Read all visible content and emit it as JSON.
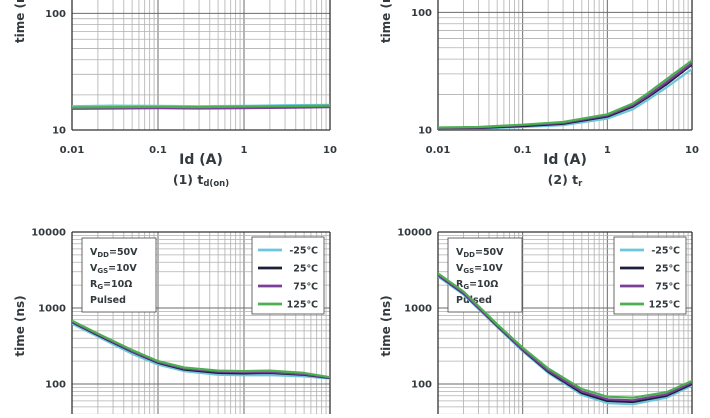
{
  "chart_data": [
    {
      "type": "line",
      "xscale": "log",
      "yscale": "log",
      "xlabel": "Id (A)",
      "ylabel": "time (ns)",
      "caption_main": "(1) t",
      "caption_sub": "d(on)",
      "xlim": [
        0.01,
        10
      ],
      "ylim": [
        10,
        10000
      ],
      "x_ticks": [
        "0.01",
        "0.1",
        "1",
        "10"
      ],
      "y_ticks": [
        "10",
        "100"
      ],
      "grid": true,
      "conditions": [],
      "series": [
        {
          "name": "-25℃",
          "color": "#6ec6dc",
          "x": [
            0.01,
            0.03,
            0.1,
            0.3,
            1,
            3,
            10
          ],
          "y": [
            16.0,
            16.2,
            16.1,
            16.0,
            16.1,
            16.3,
            16.4
          ]
        },
        {
          "name": "25℃",
          "color": "#1a1f3a",
          "x": [
            0.01,
            0.03,
            0.1,
            0.3,
            1,
            3,
            10
          ],
          "y": [
            15.4,
            15.5,
            15.6,
            15.5,
            15.6,
            15.7,
            15.9
          ]
        },
        {
          "name": "75℃",
          "color": "#7b3f98",
          "x": [
            0.01,
            0.03,
            0.1,
            0.3,
            1,
            3,
            10
          ],
          "y": [
            15.2,
            15.3,
            15.4,
            15.3,
            15.4,
            15.5,
            15.7
          ]
        },
        {
          "name": "125℃",
          "color": "#4caf50",
          "x": [
            0.01,
            0.03,
            0.1,
            0.3,
            1,
            3,
            10
          ],
          "y": [
            15.6,
            15.7,
            15.8,
            15.7,
            15.9,
            16.0,
            16.2
          ]
        }
      ]
    },
    {
      "type": "line",
      "xscale": "log",
      "yscale": "log",
      "xlabel": "Id (A)",
      "ylabel": "time (ns)",
      "caption_main": "(2) t",
      "caption_sub": "r",
      "xlim": [
        0.01,
        10
      ],
      "ylim": [
        10,
        10000
      ],
      "x_ticks": [
        "0.01",
        "0.1",
        "1",
        "10"
      ],
      "y_ticks": [
        "10",
        "100"
      ],
      "grid": true,
      "conditions": [],
      "series": [
        {
          "name": "-25℃",
          "color": "#6ec6dc",
          "x": [
            0.01,
            0.03,
            0.1,
            0.3,
            1,
            2,
            3,
            5,
            10
          ],
          "y": [
            10.2,
            10.3,
            10.6,
            11.0,
            12.5,
            15.0,
            18.0,
            23.0,
            33.0
          ]
        },
        {
          "name": "25℃",
          "color": "#1a1f3a",
          "x": [
            0.01,
            0.03,
            0.1,
            0.3,
            1,
            2,
            3,
            5,
            10
          ],
          "y": [
            10.3,
            10.4,
            10.8,
            11.3,
            13.0,
            15.8,
            19.0,
            24.5,
            36.0
          ]
        },
        {
          "name": "75℃",
          "color": "#7b3f98",
          "x": [
            0.01,
            0.03,
            0.1,
            0.3,
            1,
            2,
            3,
            5,
            10
          ],
          "y": [
            10.4,
            10.5,
            11.0,
            11.5,
            13.3,
            16.2,
            19.5,
            25.5,
            37.0
          ]
        },
        {
          "name": "125℃",
          "color": "#4caf50",
          "x": [
            0.01,
            0.03,
            0.1,
            0.3,
            1,
            2,
            3,
            5,
            10
          ],
          "y": [
            10.5,
            10.6,
            11.1,
            11.7,
            13.6,
            16.8,
            20.5,
            27.0,
            39.0
          ]
        }
      ]
    },
    {
      "type": "line",
      "xscale": "log",
      "yscale": "log",
      "xlabel": "",
      "ylabel": "time (ns)",
      "xlim": [
        0.01,
        10
      ],
      "ylim": [
        10,
        10000
      ],
      "y_ticks": [
        "100",
        "1000",
        "10000"
      ],
      "grid": true,
      "legend_position": "top-right",
      "conditions": [
        {
          "main": "V",
          "sub": "DD",
          "rest": "=50V"
        },
        {
          "main": "V",
          "sub": "GS",
          "rest": "=10V"
        },
        {
          "main": "R",
          "sub": "G",
          "rest": "=10Ω"
        },
        {
          "main": "Pulsed",
          "sub": "",
          "rest": ""
        }
      ],
      "series": [
        {
          "name": "-25℃",
          "color": "#6ec6dc",
          "x": [
            0.01,
            0.02,
            0.05,
            0.1,
            0.2,
            0.5,
            1,
            2,
            5,
            10
          ],
          "y": [
            620,
            420,
            250,
            180,
            148,
            132,
            130,
            131,
            126,
            118
          ]
        },
        {
          "name": "25℃",
          "color": "#1a1f3a",
          "x": [
            0.01,
            0.02,
            0.05,
            0.1,
            0.2,
            0.5,
            1,
            2,
            5,
            10
          ],
          "y": [
            650,
            440,
            265,
            190,
            155,
            140,
            138,
            140,
            132,
            120
          ]
        },
        {
          "name": "75℃",
          "color": "#7b3f98",
          "x": [
            0.01,
            0.02,
            0.05,
            0.1,
            0.2,
            0.5,
            1,
            2,
            5,
            10
          ],
          "y": [
            660,
            450,
            270,
            195,
            160,
            145,
            143,
            144,
            135,
            121
          ]
        },
        {
          "name": "125℃",
          "color": "#4caf50",
          "x": [
            0.01,
            0.02,
            0.05,
            0.1,
            0.2,
            0.5,
            1,
            2,
            5,
            10
          ],
          "y": [
            680,
            460,
            280,
            200,
            165,
            150,
            148,
            150,
            140,
            123
          ]
        }
      ]
    },
    {
      "type": "line",
      "xscale": "log",
      "yscale": "log",
      "xlabel": "",
      "ylabel": "time (ns)",
      "xlim": [
        0.01,
        10
      ],
      "ylim": [
        10,
        10000
      ],
      "y_ticks": [
        "100",
        "1000",
        "10000"
      ],
      "grid": true,
      "legend_position": "top-right",
      "conditions": [
        {
          "main": "V",
          "sub": "DD",
          "rest": "=50V"
        },
        {
          "main": "V",
          "sub": "GS",
          "rest": "=10V"
        },
        {
          "main": "R",
          "sub": "G",
          "rest": "=10Ω"
        },
        {
          "main": "Pulsed",
          "sub": "",
          "rest": ""
        }
      ],
      "series": [
        {
          "name": "-25℃",
          "color": "#6ec6dc",
          "x": [
            0.01,
            0.02,
            0.05,
            0.1,
            0.2,
            0.5,
            1,
            2,
            5,
            10
          ],
          "y": [
            2600,
            1500,
            560,
            270,
            140,
            72,
            56,
            54,
            66,
            95
          ]
        },
        {
          "name": "25℃",
          "color": "#1a1f3a",
          "x": [
            0.01,
            0.02,
            0.05,
            0.1,
            0.2,
            0.5,
            1,
            2,
            5,
            10
          ],
          "y": [
            2700,
            1550,
            580,
            280,
            145,
            76,
            60,
            58,
            70,
            100
          ]
        },
        {
          "name": "75℃",
          "color": "#7b3f98",
          "x": [
            0.01,
            0.02,
            0.05,
            0.1,
            0.2,
            0.5,
            1,
            2,
            5,
            10
          ],
          "y": [
            2750,
            1580,
            590,
            285,
            150,
            80,
            63,
            61,
            73,
            104
          ]
        },
        {
          "name": "125℃",
          "color": "#4caf50",
          "x": [
            0.01,
            0.02,
            0.05,
            0.1,
            0.2,
            0.5,
            1,
            2,
            5,
            10
          ],
          "y": [
            2850,
            1650,
            610,
            300,
            160,
            86,
            68,
            66,
            78,
            110
          ]
        }
      ]
    }
  ]
}
